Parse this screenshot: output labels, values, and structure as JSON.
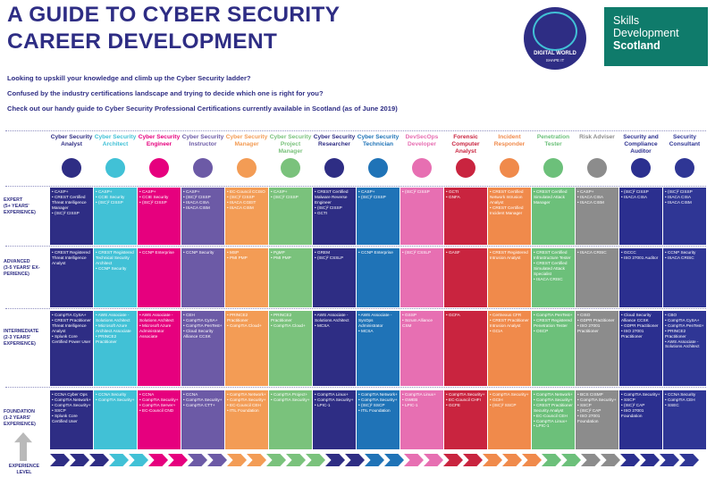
{
  "title_line1": "A GUIDE TO CYBER SECURITY",
  "title_line2": "CAREER DEVELOPMENT",
  "intro": [
    "Looking to upskill your knowledge and climb up the Cyber Security ladder?",
    "Confused by the industry certifications landscape and trying to decide which one is right for you?",
    "Check out our handy guide to Cyber Security Professional Certifications currently available in Scotland (as of June 2019)"
  ],
  "logos": {
    "digital_world": "DIGITAL WORLD",
    "digital_world_tag": "SHAPE IT",
    "sds_line1": "Skills",
    "sds_line2": "Development",
    "sds_line3": "Scotland"
  },
  "levels": [
    {
      "key": "expert",
      "label": "EXPERT\n(5+ YEARS' EXPERIENCE)"
    },
    {
      "key": "advanced",
      "label": "ADVANCED\n(3-5 YEARS' EX-PERIENCE)"
    },
    {
      "key": "intermediate",
      "label": "INTERMEDIATE\n(2-3 YEARS' EXPERIENCE)"
    },
    {
      "key": "foundation",
      "label": "FOUNDATION\n(1-2 YEARS' EXPERIENCE)"
    }
  ],
  "experience_label": "EXPERIENCE LEVEL",
  "columns": [
    {
      "name": "Cyber Security Analyst",
      "color": "#2e2d84",
      "icon": "shield-check-icon",
      "expert": [
        "CASP+",
        "CREST Certified Threat Intelligence Manager",
        "(ISC)² CISSP"
      ],
      "advanced": [
        "CREST Registered Threat Intelligence Analyst"
      ],
      "intermediate": [
        "CompTIA CySA+",
        "CREST Practitioner Threat Intelligence Analyst",
        "Splunk Core Certified Power User"
      ],
      "foundation": [
        "CCNA Cyber Ops",
        "CompTIA Network+",
        "CompTIA Security+",
        "SSCP",
        "Splunk Core Certified User"
      ]
    },
    {
      "name": "Cyber Security Architect",
      "color": "#41c1d6",
      "icon": "building-icon",
      "expert": [
        "CASP+",
        "CCIE Security",
        "(ISC)² CISSP"
      ],
      "advanced": [
        "CREST Registered Technical Security Architect",
        "CCNP Security"
      ],
      "intermediate": [
        "AWS Associate - Solutions Architect",
        "Microsoft Azure Architect Associate",
        "PRINCE2 Practitioner"
      ],
      "foundation": [
        "CCNA Security",
        "CompTIA Security+"
      ]
    },
    {
      "name": "Cyber Security Engineer",
      "color": "#e6007e",
      "icon": "gear-icon",
      "expert": [
        "CASP+",
        "CCIE Security",
        "(ISC)² CISSP"
      ],
      "advanced": [
        "CCNP Enterprise"
      ],
      "intermediate": [
        "AWS Associate - Solutions Architect",
        "Microsoft Azure Administrator Associate"
      ],
      "foundation": [
        "CCNA",
        "CompTIA Security+",
        "CompTIA Server+",
        "EC-Council CND"
      ]
    },
    {
      "name": "Cyber Security Instructor",
      "color": "#6c5aa6",
      "icon": "teacher-icon",
      "expert": [
        "CASP+",
        "(ISC)² CISSP",
        "ISACA CISA",
        "ISACA CISM"
      ],
      "advanced": [
        "CCNP Security"
      ],
      "intermediate": [
        "CEH",
        "CompTIA CySA+",
        "CompTIA PenTest+",
        "Cloud Security Alliance CCSK"
      ],
      "foundation": [
        "CCNA",
        "CompTIA Security+",
        "CompTIA CTT+"
      ]
    },
    {
      "name": "Cyber Security Manager",
      "color": "#f39c55",
      "icon": "network-icon",
      "expert": [
        "EC-Council CCISO",
        "(ISC)² CISSP",
        "ISACA CGEIT",
        "ISACA CISM"
      ],
      "advanced": [
        "MSP",
        "PMI PMP"
      ],
      "intermediate": [
        "PRINCE2 Practitioner",
        "CompTIA Cloud+"
      ],
      "foundation": [
        "CompTIA Network+",
        "CompTIA Security+",
        "EC-Council CEH",
        "ITIL Foundation"
      ]
    },
    {
      "name": "Cyber Security Project Manager",
      "color": "#7ac27c",
      "icon": "clipboard-icon",
      "expert": [
        "CASP+",
        "(ISC)² CISSP"
      ],
      "advanced": [
        "PgMP",
        "PMI PMP"
      ],
      "intermediate": [
        "PRINCE2 Practitioner",
        "CompTIA Cloud+"
      ],
      "foundation": [
        "CompTIA Project+",
        "CompTIA Security+"
      ]
    },
    {
      "name": "Cyber Security Researcher",
      "color": "#2e2d84",
      "icon": "magnifier-icon",
      "expert": [
        "CREST Certified Malware Reverse Engineer",
        "(ISC)² CISSP",
        "GCTI"
      ],
      "advanced": [
        "GREM",
        "(ISC)² CSSLP"
      ],
      "intermediate": [
        "AWS Associate - Solutions Architect",
        "MCSA"
      ],
      "foundation": [
        "CompTIA Linux+",
        "CompTIA Security+",
        "LPIC-1"
      ]
    },
    {
      "name": "Cyber Security Technician",
      "color": "#1f73b7",
      "icon": "laptop-icon",
      "expert": [
        "CASP+",
        "(ISC)² CISSP"
      ],
      "advanced": [
        "CCNP Enterprise"
      ],
      "intermediate": [
        "AWS Associate - SysOps Administrator",
        "MCSA"
      ],
      "foundation": [
        "CompTIA Network+",
        "CompTIA Security+",
        "(ISC)² SSCP",
        "ITIL Foundation"
      ]
    },
    {
      "name": "DevSecOps Developer",
      "color": "#e76fb2",
      "icon": "devsecops-icon",
      "expert": [
        "(ISC)² CISSP"
      ],
      "advanced": [
        "(ISC)² CSSLP"
      ],
      "intermediate": [
        "GSSP",
        "Scrum Alliance CSM"
      ],
      "foundation": [
        "CompTIA Linux+",
        "GWEB",
        "LPIC-1"
      ]
    },
    {
      "name": "Forensic Computer Analyst",
      "color": "#c9243f",
      "icon": "monitor-icon",
      "expert": [
        "GCTI",
        "GNFA"
      ],
      "advanced": [
        "GASF"
      ],
      "intermediate": [
        "GCFA"
      ],
      "foundation": [
        "CompTIA Security+",
        "EC-Council CHFI",
        "GCFE"
      ]
    },
    {
      "name": "Incident Responder",
      "color": "#f08a4b",
      "icon": "alert-icon",
      "expert": [
        "CREST Certified Network Intrusion Analyst",
        "CREST Certified Incident Manager"
      ],
      "advanced": [
        "CREST Registered Intrusion Analyst"
      ],
      "intermediate": [
        "Certnexus CFR",
        "CREST Practitioner Intrusion Analyst",
        "GCIA"
      ],
      "foundation": [
        "CompTIA Security+",
        "GCIH",
        "(ISC)² SSCP"
      ]
    },
    {
      "name": "Penetration Tester",
      "color": "#6cc07a",
      "icon": "target-icon",
      "expert": [
        "CREST Certified Simulated Attack Manager"
      ],
      "advanced": [
        "CREST Certified Infrastructure Tester",
        "CREST Certified Simulated Attack Specialist",
        "ISACA CRISC"
      ],
      "intermediate": [
        "CompTIA PenTest+",
        "CREST Registered Penetration Tester",
        "OSCP"
      ],
      "foundation": [
        "CompTIA Network+",
        "CompTIA Security+",
        "CREST Practitioner Security Analyst",
        "EC-Council CEH",
        "CompTIA Linux+",
        "LPIC-1"
      ]
    },
    {
      "name": "Risk Adviser",
      "color": "#8c8c8c",
      "icon": "chart-icon",
      "expert": [
        "CASP+",
        "ISACA CISA",
        "ISACA CISM"
      ],
      "advanced": [
        "ISACA CRISC"
      ],
      "intermediate": [
        "CISO",
        "GDPR Practitioner",
        "ISO 27001 Practitioner"
      ],
      "foundation": [
        "BCS CISMP",
        "CompTIA Security+",
        "SSCP",
        "(ISC)² CAP",
        "ISO 27001 Foundation"
      ]
    },
    {
      "name": "Security and Compliance Auditor",
      "color": "#2b2f8f",
      "icon": "checklist-icon",
      "expert": [
        "(ISC)² CISSP",
        "ISACA CISA"
      ],
      "advanced": [
        "GCCC",
        "ISO 27001 Auditor"
      ],
      "intermediate": [
        "Cloud Security Alliance CCSK",
        "GDPR Practitioner",
        "ISO 27001 Practitioner"
      ],
      "foundation": [
        "CompTIA Security+",
        "SSCP",
        "(ISC)² CAP",
        "ISO 27001 Foundation"
      ]
    },
    {
      "name": "Security Consultant",
      "color": "#2f3695",
      "icon": "consultant-icon",
      "expert": [
        "(ISC)² CISSP",
        "ISACA CISA",
        "ISACA CISM"
      ],
      "advanced": [
        "CCNP Security",
        "ISACA CRISC"
      ],
      "intermediate": [
        "CBO",
        "CompTIA CySA+",
        "CompTIA PenTest+",
        "PRINCE2 Practitioner",
        "AWS Associate - Solutions Architect"
      ],
      "foundation": [
        "CCNA Security",
        "CompTIA CEH",
        "SSEC"
      ]
    }
  ]
}
